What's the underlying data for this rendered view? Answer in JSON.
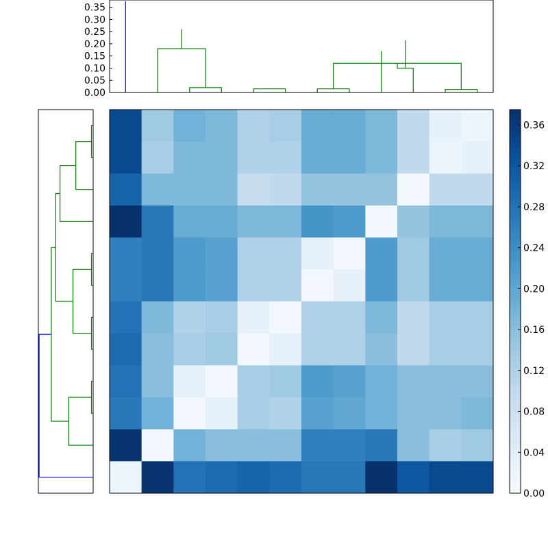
{
  "chart_data": [
    {
      "type": "heatmap",
      "name": "distance-matrix",
      "rows": 12,
      "cols": 12,
      "values": [
        [
          0.34,
          0.14,
          0.18,
          0.17,
          0.12,
          0.13,
          0.19,
          0.19,
          0.17,
          0.1,
          0.03,
          0.02
        ],
        [
          0.34,
          0.13,
          0.17,
          0.17,
          0.12,
          0.12,
          0.19,
          0.19,
          0.17,
          0.1,
          0.02,
          0.03
        ],
        [
          0.3,
          0.17,
          0.17,
          0.17,
          0.09,
          0.1,
          0.15,
          0.15,
          0.15,
          0.01,
          0.1,
          0.1
        ],
        [
          0.38,
          0.27,
          0.19,
          0.19,
          0.17,
          0.17,
          0.23,
          0.22,
          0.01,
          0.15,
          0.17,
          0.17
        ],
        [
          0.26,
          0.27,
          0.22,
          0.21,
          0.12,
          0.12,
          0.03,
          0.01,
          0.22,
          0.14,
          0.19,
          0.19
        ],
        [
          0.26,
          0.27,
          0.22,
          0.21,
          0.12,
          0.12,
          0.01,
          0.03,
          0.22,
          0.14,
          0.19,
          0.19
        ],
        [
          0.28,
          0.17,
          0.12,
          0.13,
          0.03,
          0.01,
          0.12,
          0.12,
          0.17,
          0.1,
          0.13,
          0.13
        ],
        [
          0.29,
          0.16,
          0.13,
          0.14,
          0.01,
          0.03,
          0.12,
          0.12,
          0.16,
          0.1,
          0.13,
          0.13
        ],
        [
          0.28,
          0.16,
          0.03,
          0.01,
          0.13,
          0.14,
          0.22,
          0.21,
          0.18,
          0.16,
          0.16,
          0.16
        ],
        [
          0.27,
          0.18,
          0.01,
          0.03,
          0.13,
          0.12,
          0.21,
          0.2,
          0.18,
          0.16,
          0.16,
          0.17
        ],
        [
          0.37,
          0.01,
          0.18,
          0.16,
          0.16,
          0.16,
          0.26,
          0.26,
          0.27,
          0.16,
          0.13,
          0.14
        ],
        [
          0.02,
          0.37,
          0.28,
          0.29,
          0.3,
          0.29,
          0.27,
          0.27,
          0.38,
          0.32,
          0.34,
          0.34
        ]
      ],
      "colormap": "Blues",
      "vmin": 0.0,
      "vmax": 0.375
    },
    {
      "type": "dendrogram",
      "name": "top-dendrogram",
      "orientation": "top",
      "ylim": [
        0,
        0.38
      ],
      "yticks": [
        "0.00",
        "0.05",
        "0.10",
        "0.15",
        "0.20",
        "0.25",
        "0.30",
        "0.35"
      ],
      "merges": [
        {
          "left": 2,
          "right": 3,
          "height": 0.02,
          "color": "#008000"
        },
        {
          "left": 4,
          "right": 5,
          "height": 0.015,
          "color": "#008000"
        },
        {
          "left": 6,
          "right": 7,
          "height": 0.015,
          "color": "#008000"
        },
        {
          "left": 10,
          "right": 11,
          "height": 0.012,
          "color": "#008000"
        },
        {
          "left": 1,
          "right": 12,
          "height": 0.18,
          "color": "#008000"
        },
        {
          "left": 14,
          "right": 15,
          "height": 0.12,
          "color": "#008000"
        },
        {
          "left": 9,
          "right": 17,
          "height": 0.1,
          "color": "#008000"
        },
        {
          "left": 8,
          "right": 19,
          "height": 0.17,
          "color": "#008000"
        },
        {
          "left": 18,
          "right": 20,
          "height": 0.215,
          "color": "#008000"
        },
        {
          "left": 16,
          "right": 21,
          "height": 0.26,
          "color": "#008000"
        },
        {
          "left": 0,
          "right": 22,
          "height": 0.375,
          "color": "#0000ff"
        }
      ]
    },
    {
      "type": "dendrogram",
      "name": "left-dendrogram",
      "orientation": "left",
      "xlim": [
        0,
        0.38
      ],
      "merges": [
        {
          "left": 0,
          "right": 1,
          "height": 0.012,
          "color": "#008000"
        },
        {
          "left": 12,
          "right": 2,
          "height": 0.12,
          "color": "#008000"
        },
        {
          "left": 13,
          "right": 3,
          "height": 0.23,
          "color": "#008000"
        },
        {
          "left": 4,
          "right": 5,
          "height": 0.012,
          "color": "#008000"
        },
        {
          "left": 6,
          "right": 7,
          "height": 0.012,
          "color": "#008000"
        },
        {
          "left": 15,
          "right": 16,
          "height": 0.14,
          "color": "#008000"
        },
        {
          "left": 14,
          "right": 17,
          "height": 0.26,
          "color": "#008000"
        },
        {
          "left": 8,
          "right": 9,
          "height": 0.012,
          "color": "#008000"
        },
        {
          "left": 19,
          "right": 10,
          "height": 0.17,
          "color": "#008000"
        },
        {
          "left": 18,
          "right": 20,
          "height": 0.29,
          "color": "#008000"
        },
        {
          "left": 21,
          "right": 11,
          "height": 0.375,
          "color": "#0000ff"
        }
      ]
    },
    {
      "type": "colorbar",
      "name": "colorbar",
      "colormap": "Blues",
      "range": [
        0.0,
        0.375
      ],
      "ticks": [
        "0.00",
        "0.04",
        "0.08",
        "0.12",
        "0.16",
        "0.20",
        "0.24",
        "0.28",
        "0.32",
        "0.36"
      ]
    }
  ]
}
